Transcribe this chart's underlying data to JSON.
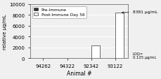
{
  "categories": [
    "94262",
    "94322",
    "92342",
    "93122"
  ],
  "pre_immune": [
    0,
    50,
    0,
    50
  ],
  "post_immune": [
    0,
    100,
    2400,
    8381
  ],
  "pre_color": "#333333",
  "post_color": "#ffffff",
  "post_edgecolor": "#333333",
  "pre_edgecolor": "#333333",
  "ylim": [
    0,
    10000
  ],
  "yticks": [
    0,
    2000,
    4000,
    6000,
    8000,
    10000
  ],
  "ylabel": "relative μg/mL",
  "xlabel": "Animal #",
  "legend_labels": [
    "Pre-Immune",
    "Post-Immune Day 56"
  ],
  "annotation_8381": "8381 μg/mL",
  "annotation_loq": "LOQ=\n0.125 μg/mL",
  "bar_width": 0.35,
  "background_color": "#f0f0f0",
  "grid_color": "#ffffff"
}
